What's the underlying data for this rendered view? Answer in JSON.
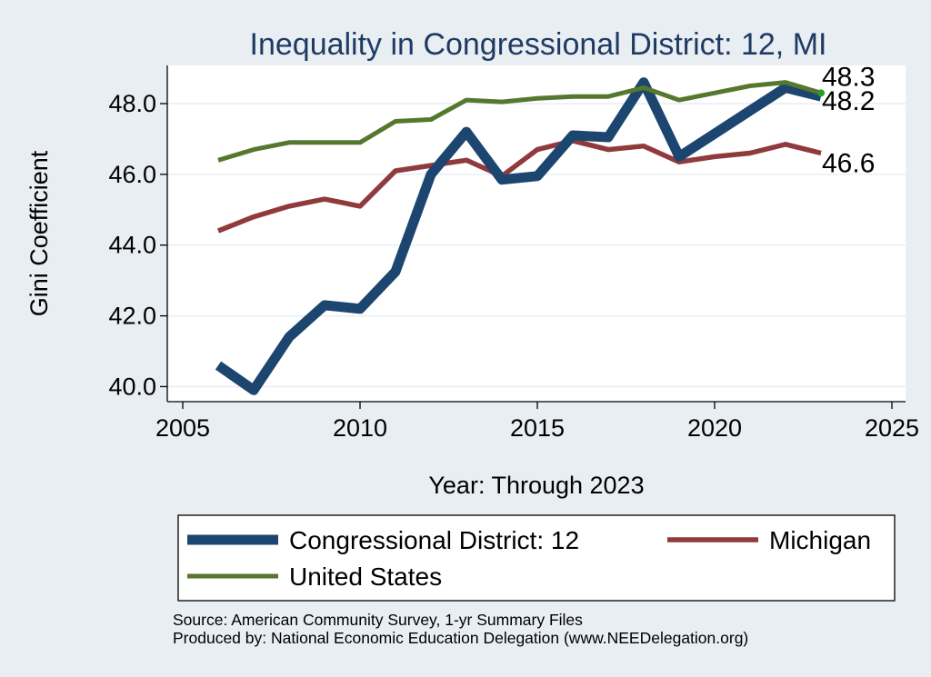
{
  "chart_data": {
    "type": "line",
    "title": "Inequality in Congressional District:  12, MI",
    "xlabel": "Year: Through 2023",
    "ylabel": "Gini Coefficient",
    "xlim": [
      2005,
      2025
    ],
    "ylim": [
      39.7,
      49.1
    ],
    "x_ticks": [
      "2005",
      "2010",
      "2015",
      "2020",
      "2025"
    ],
    "y_ticks": [
      "40.0",
      "42.0",
      "44.0",
      "46.0",
      "48.0"
    ],
    "grid": true,
    "legend_position": "bottom",
    "x": [
      2006,
      2007,
      2008,
      2009,
      2010,
      2011,
      2012,
      2013,
      2014,
      2015,
      2016,
      2017,
      2018,
      2019,
      2020,
      2021,
      2022,
      2023
    ],
    "series": [
      {
        "name": "Congressional District:  12",
        "color": "#1c4670",
        "values": [
          40.6,
          39.9,
          41.4,
          42.3,
          42.2,
          43.25,
          46.0,
          47.2,
          45.85,
          45.95,
          47.1,
          47.05,
          48.6,
          46.5,
          47.15,
          47.8,
          48.45,
          48.2
        ],
        "end_label": "48.2"
      },
      {
        "name": "Michigan",
        "color": "#913a3d",
        "values": [
          44.4,
          44.8,
          45.1,
          45.3,
          45.1,
          46.1,
          46.25,
          46.4,
          45.95,
          46.7,
          46.95,
          46.7,
          46.8,
          46.35,
          46.5,
          46.6,
          46.85,
          46.6
        ],
        "end_label": "46.6"
      },
      {
        "name": "United States",
        "color": "#55772e",
        "values": [
          46.4,
          46.7,
          46.9,
          46.9,
          46.9,
          47.5,
          47.55,
          48.1,
          48.05,
          48.15,
          48.2,
          48.2,
          48.45,
          48.1,
          48.3,
          48.5,
          48.6,
          48.3
        ],
        "end_label": "48.3"
      }
    ],
    "source_lines": [
      "Source: American Community Survey, 1-yr Summary Files",
      "Produced by: National Economic Education Delegation (www.NEEDelegation.org)"
    ]
  }
}
